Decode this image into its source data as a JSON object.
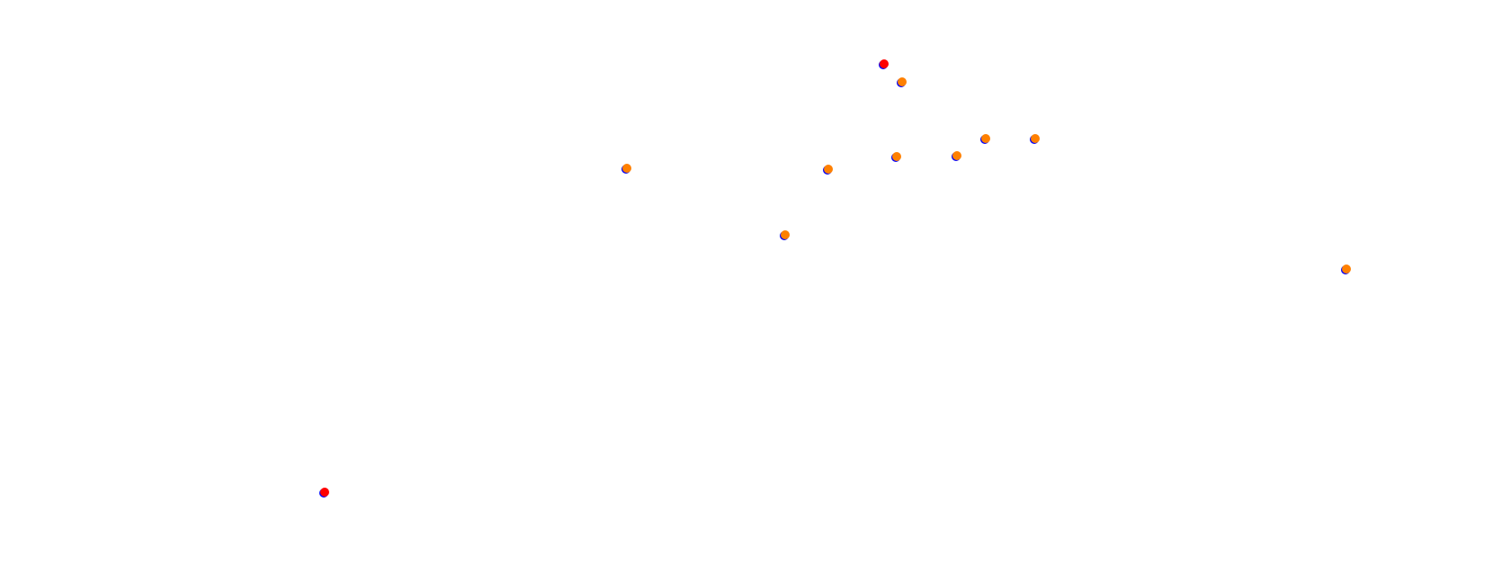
{
  "colors": {
    "background": "#ffffff",
    "shadow": "#0000ff",
    "checkpoint": "#ff8000",
    "endpoint": "#ff0000"
  },
  "markers": [
    {
      "kind": "endpoint"
    },
    {
      "kind": "checkpoint"
    },
    {
      "kind": "checkpoint"
    },
    {
      "kind": "checkpoint"
    },
    {
      "kind": "checkpoint"
    },
    {
      "kind": "checkpoint"
    },
    {
      "kind": "checkpoint"
    },
    {
      "kind": "checkpoint"
    },
    {
      "kind": "checkpoint"
    },
    {
      "kind": "checkpoint"
    },
    {
      "kind": "endpoint"
    }
  ]
}
